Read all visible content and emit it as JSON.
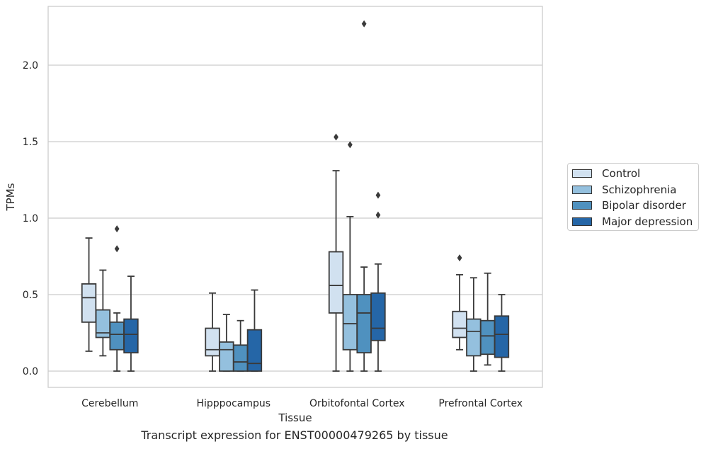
{
  "caption": "Transcript expression for ENST00000479265 by tissue",
  "chart_data": {
    "type": "box",
    "xlabel": "Tissue",
    "ylabel": "TPMs",
    "ylim": [
      -0.11,
      2.38
    ],
    "yticks": [
      "0.0",
      "0.5",
      "1.0",
      "1.5",
      "2.0"
    ],
    "grid": "horizontal",
    "legend_position": "right",
    "categories": [
      "Cerebellum",
      "Hipppocampus",
      "Orbitofontal Cortex",
      "Prefrontal Cortex"
    ],
    "series": [
      {
        "name": "Control",
        "color": "#d1e1f0",
        "boxes": [
          {
            "whislo": 0.13,
            "q1": 0.32,
            "med": 0.48,
            "q3": 0.57,
            "whishi": 0.87,
            "fliers": []
          },
          {
            "whislo": 0.0,
            "q1": 0.1,
            "med": 0.14,
            "q3": 0.28,
            "whishi": 0.51,
            "fliers": []
          },
          {
            "whislo": 0.0,
            "q1": 0.38,
            "med": 0.56,
            "q3": 0.78,
            "whishi": 1.31,
            "fliers": [
              1.53
            ]
          },
          {
            "whislo": 0.14,
            "q1": 0.22,
            "med": 0.28,
            "q3": 0.39,
            "whishi": 0.63,
            "fliers": [
              0.74
            ]
          }
        ]
      },
      {
        "name": "Schizophrenia",
        "color": "#94c0de",
        "boxes": [
          {
            "whislo": 0.1,
            "q1": 0.22,
            "med": 0.25,
            "q3": 0.4,
            "whishi": 0.66,
            "fliers": []
          },
          {
            "whislo": 0.0,
            "q1": 0.0,
            "med": 0.14,
            "q3": 0.19,
            "whishi": 0.37,
            "fliers": []
          },
          {
            "whislo": 0.0,
            "q1": 0.14,
            "med": 0.31,
            "q3": 0.5,
            "whishi": 1.01,
            "fliers": [
              1.48
            ]
          },
          {
            "whislo": 0.0,
            "q1": 0.1,
            "med": 0.26,
            "q3": 0.34,
            "whishi": 0.61,
            "fliers": []
          }
        ]
      },
      {
        "name": "Bipolar disorder",
        "color": "#4f91bf",
        "boxes": [
          {
            "whislo": 0.0,
            "q1": 0.14,
            "med": 0.24,
            "q3": 0.32,
            "whishi": 0.38,
            "fliers": [
              0.8,
              0.93
            ]
          },
          {
            "whislo": 0.0,
            "q1": 0.0,
            "med": 0.06,
            "q3": 0.17,
            "whishi": 0.33,
            "fliers": []
          },
          {
            "whislo": 0.0,
            "q1": 0.12,
            "med": 0.38,
            "q3": 0.5,
            "whishi": 0.68,
            "fliers": [
              2.27
            ]
          },
          {
            "whislo": 0.04,
            "q1": 0.11,
            "med": 0.23,
            "q3": 0.33,
            "whishi": 0.64,
            "fliers": []
          }
        ]
      },
      {
        "name": "Major depression",
        "color": "#2566a7",
        "boxes": [
          {
            "whislo": 0.0,
            "q1": 0.12,
            "med": 0.24,
            "q3": 0.34,
            "whishi": 0.62,
            "fliers": []
          },
          {
            "whislo": 0.0,
            "q1": 0.0,
            "med": 0.05,
            "q3": 0.27,
            "whishi": 0.53,
            "fliers": []
          },
          {
            "whislo": 0.0,
            "q1": 0.2,
            "med": 0.28,
            "q3": 0.51,
            "whishi": 0.7,
            "fliers": [
              1.02,
              1.15
            ]
          },
          {
            "whislo": 0.0,
            "q1": 0.09,
            "med": 0.24,
            "q3": 0.36,
            "whishi": 0.5,
            "fliers": []
          }
        ]
      }
    ]
  }
}
